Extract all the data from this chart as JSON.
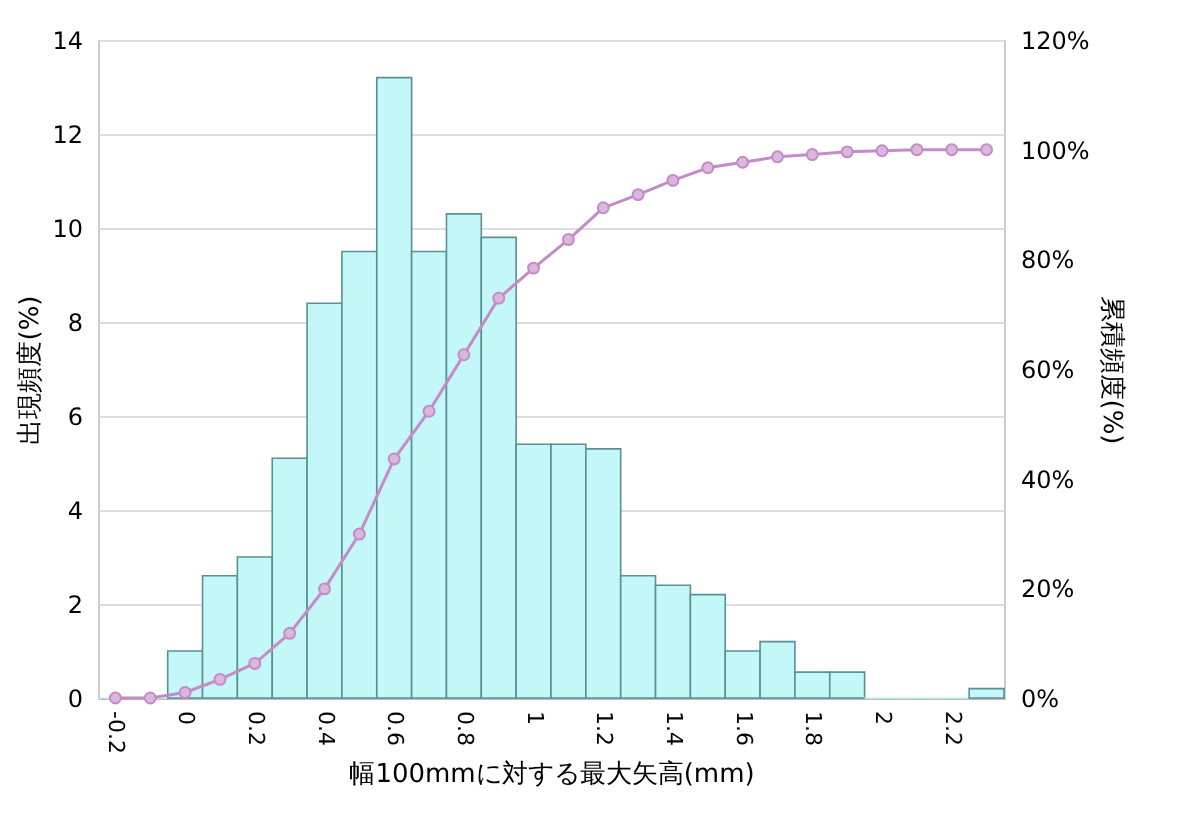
{
  "chart_data": {
    "type": "bar",
    "xlabel": "幅100mmに対する最大矢高(mm)",
    "ylabel": "出現頻度(%)",
    "y2label": "累積頻度(%)",
    "categories": [
      "-0.2",
      null,
      "0",
      null,
      "0.2",
      null,
      "0.4",
      null,
      "0.6",
      null,
      "0.8",
      null,
      "1",
      null,
      "1.2",
      null,
      "1.4",
      null,
      "1.6",
      null,
      "1.8",
      null,
      "2",
      null,
      "2.2",
      null
    ],
    "series": [
      {
        "color": "#c4f7f7",
        "values": [
          0,
          0,
          1.0,
          2.6,
          3.0,
          5.1,
          8.4,
          9.5,
          13.2,
          9.5,
          10.3,
          9.8,
          5.4,
          5.4,
          5.3,
          2.6,
          2.4,
          2.2,
          1.0,
          1.2,
          0.55,
          0.55,
          0,
          0,
          0,
          0.2
        ]
      },
      {
        "type": "line",
        "axis": "y2",
        "color": "#c58bc8",
        "values": [
          0,
          0,
          1,
          3.4,
          6.3,
          11.8,
          19.9,
          29.9,
          43.6,
          52.3,
          62.6,
          72.9,
          78.4,
          83.6,
          89.4,
          91.8,
          94.4,
          96.7,
          97.7,
          98.7,
          99.1,
          99.6,
          99.8,
          100,
          100,
          100
        ]
      }
    ],
    "ylim": [
      0,
      14
    ],
    "yticks": [
      0,
      2,
      4,
      6,
      8,
      10,
      12,
      14
    ],
    "y2lim": [
      0,
      120
    ],
    "y2ticks": [
      {
        "value": 0,
        "label": "0%"
      },
      {
        "value": 20,
        "label": "20%"
      },
      {
        "value": 40,
        "label": "40%"
      },
      {
        "value": 60,
        "label": "60%"
      },
      {
        "value": 80,
        "label": "80%"
      },
      {
        "value": 100,
        "label": "100%"
      },
      {
        "value": 120,
        "label": "120%"
      }
    ],
    "grid": "y",
    "marker": "circle"
  }
}
